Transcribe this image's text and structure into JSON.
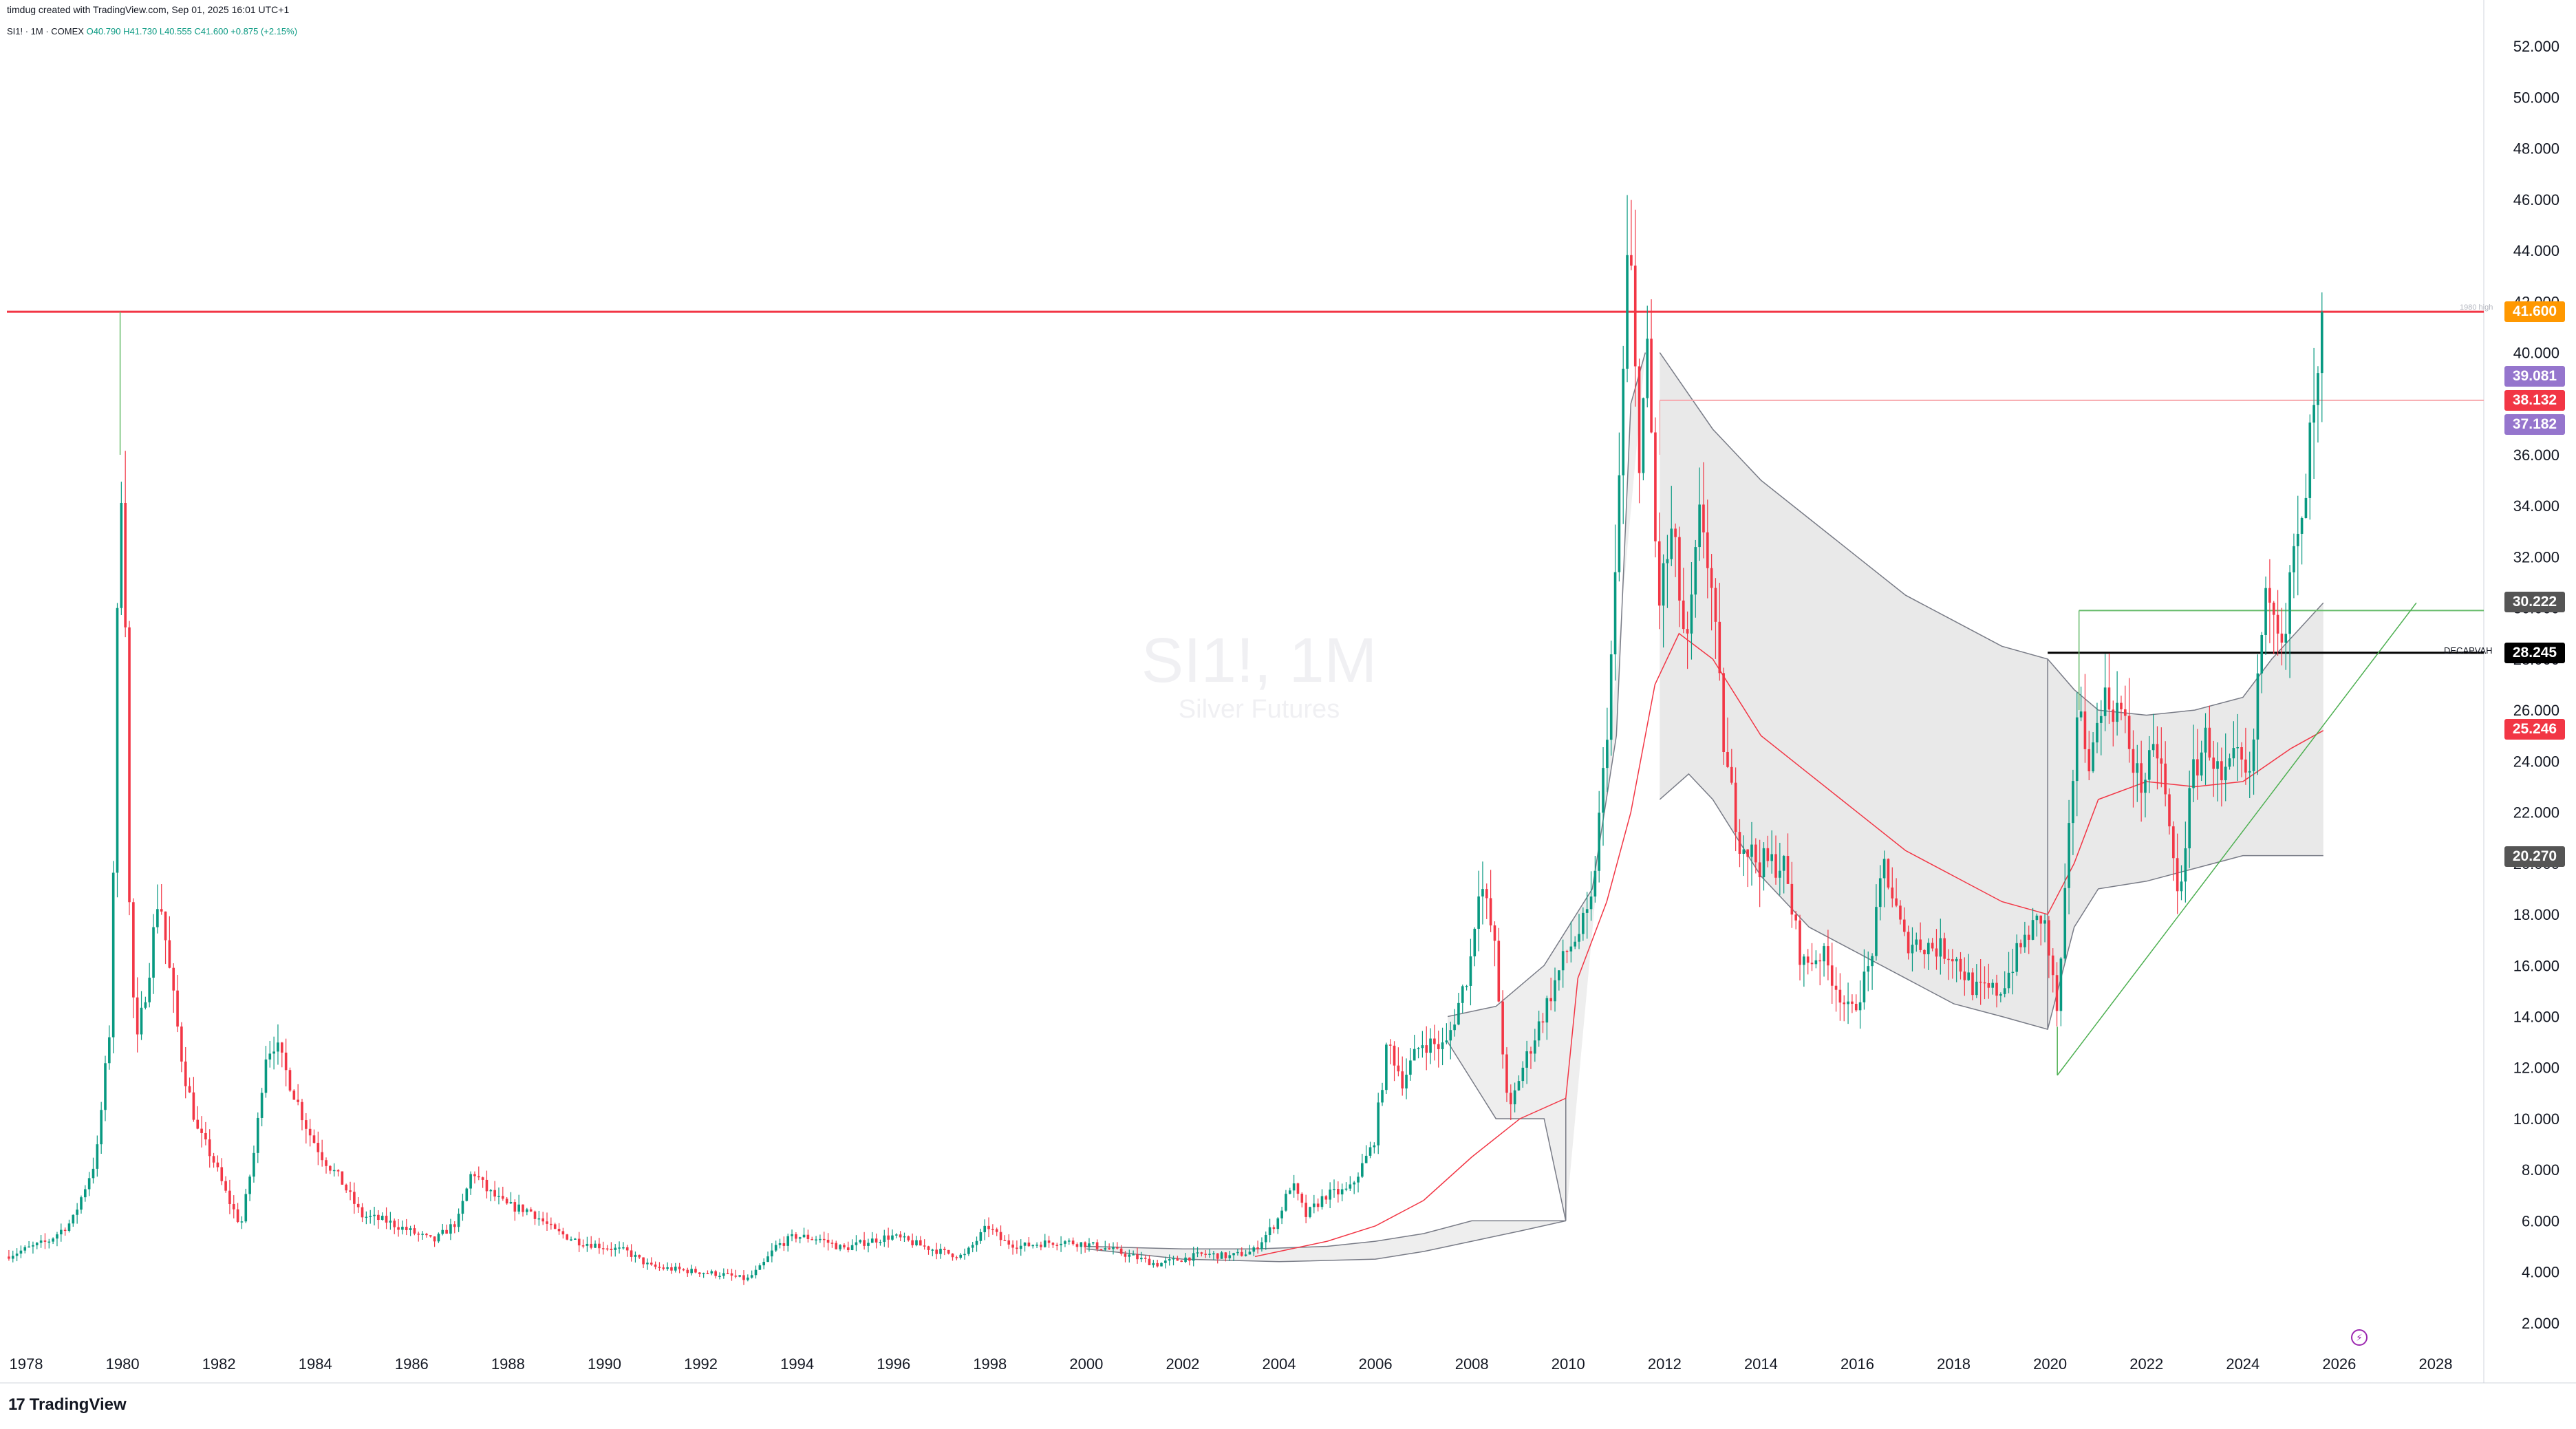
{
  "header": {
    "author_line": "timdug created with TradingView.com, Sep 01, 2025 16:01 UTC+1",
    "symbol": "SI1! · 1M · COMEX",
    "ohlc": "O40.790  H41.730  L40.555  C41.600  +0.875 (+2.15%)"
  },
  "watermark": {
    "symbol": "SI1!, 1M",
    "name": "Silver Futures"
  },
  "logo": {
    "mark": "17",
    "text": "TradingView"
  },
  "price_tags": [
    {
      "value": "41.600",
      "price": 41.6,
      "color": "#ff9800"
    },
    {
      "value": "39.081",
      "price": 39.081,
      "color": "#9575cd"
    },
    {
      "value": "38.132",
      "price": 38.132,
      "color": "#f23645"
    },
    {
      "value": "37.182",
      "price": 37.182,
      "color": "#9575cd"
    },
    {
      "value": "30.222",
      "price": 30.222,
      "color": "#555555"
    },
    {
      "value": "28.245",
      "price": 28.245,
      "color": "#000000"
    },
    {
      "value": "25.246",
      "price": 25.246,
      "color": "#f23645"
    },
    {
      "value": "20.270",
      "price": 20.27,
      "color": "#555555"
    }
  ],
  "labels": {
    "decap": "DECAPVAH",
    "high1980": "1980 high"
  },
  "colors": {
    "up": "#089981",
    "down": "#f23645",
    "band": "#e8e8e8",
    "grid": "#f0f3fa"
  },
  "icons": [
    "bolt-icon",
    "tradingview-logo-icon"
  ],
  "chart_data": {
    "type": "candlestick",
    "title": "SI1!, 1M",
    "subtitle": "Silver Futures",
    "ylim": [
      1.0,
      53.0
    ],
    "xlim": [
      1977.6,
      2029.0
    ],
    "yticks": [
      "2.000",
      "4.000",
      "6.000",
      "8.000",
      "10.000",
      "12.000",
      "14.000",
      "16.000",
      "18.000",
      "20.000",
      "22.000",
      "24.000",
      "26.000",
      "28.000",
      "30.000",
      "32.000",
      "34.000",
      "36.000",
      "38.000",
      "40.000",
      "42.000",
      "44.000",
      "46.000",
      "48.000",
      "50.000",
      "52.000"
    ],
    "xticks": [
      "1978",
      "1980",
      "1982",
      "1984",
      "1986",
      "1988",
      "1990",
      "1992",
      "1994",
      "1996",
      "1998",
      "2000",
      "2002",
      "2004",
      "2006",
      "2008",
      "2010",
      "2012",
      "2014",
      "2016",
      "2018",
      "2020",
      "2022",
      "2024",
      "2026",
      "2028"
    ],
    "path_points": [
      [
        1977.6,
        4.6
      ],
      [
        1978.5,
        5.2
      ],
      [
        1979.0,
        6.0
      ],
      [
        1979.5,
        8.5
      ],
      [
        1979.8,
        14
      ],
      [
        1979.92,
        28
      ],
      [
        1980.0,
        36
      ],
      [
        1980.1,
        30
      ],
      [
        1980.2,
        16
      ],
      [
        1980.35,
        13
      ],
      [
        1980.6,
        16
      ],
      [
        1980.8,
        19
      ],
      [
        1981.0,
        16
      ],
      [
        1981.3,
        12
      ],
      [
        1981.6,
        9.5
      ],
      [
        1981.9,
        8.5
      ],
      [
        1982.2,
        7
      ],
      [
        1982.5,
        5.8
      ],
      [
        1982.8,
        9
      ],
      [
        1983.0,
        12.5
      ],
      [
        1983.2,
        13
      ],
      [
        1983.5,
        11.5
      ],
      [
        1983.9,
        9.5
      ],
      [
        1984.2,
        8.5
      ],
      [
        1984.6,
        7.5
      ],
      [
        1985.0,
        6.2
      ],
      [
        1985.5,
        6.0
      ],
      [
        1986.0,
        5.6
      ],
      [
        1986.5,
        5.2
      ],
      [
        1987.0,
        6.0
      ],
      [
        1987.3,
        8.0
      ],
      [
        1987.6,
        7.2
      ],
      [
        1988.0,
        6.6
      ],
      [
        1988.5,
        6.4
      ],
      [
        1989.0,
        5.6
      ],
      [
        1989.5,
        5.2
      ],
      [
        1990.0,
        5.0
      ],
      [
        1990.5,
        4.8
      ],
      [
        1991.0,
        4.2
      ],
      [
        1991.5,
        4.1
      ],
      [
        1992.0,
        4.0
      ],
      [
        1992.5,
        3.9
      ],
      [
        1993.0,
        3.7
      ],
      [
        1993.3,
        4.2
      ],
      [
        1993.6,
        5.0
      ],
      [
        1994.0,
        5.4
      ],
      [
        1994.5,
        5.3
      ],
      [
        1995.0,
        4.9
      ],
      [
        1995.5,
        5.2
      ],
      [
        1996.0,
        5.4
      ],
      [
        1996.5,
        5.1
      ],
      [
        1997.0,
        4.8
      ],
      [
        1997.5,
        4.6
      ],
      [
        1998.0,
        5.8
      ],
      [
        1998.3,
        5.2
      ],
      [
        1998.7,
        5.0
      ],
      [
        1999.0,
        5.1
      ],
      [
        1999.5,
        5.2
      ],
      [
        2000.0,
        5.1
      ],
      [
        2000.5,
        4.9
      ],
      [
        2001.0,
        4.6
      ],
      [
        2001.5,
        4.3
      ],
      [
        2002.0,
        4.5
      ],
      [
        2002.5,
        4.7
      ],
      [
        2003.0,
        4.6
      ],
      [
        2003.5,
        4.8
      ],
      [
        2004.0,
        6.0
      ],
      [
        2004.3,
        7.5
      ],
      [
        2004.6,
        6.2
      ],
      [
        2005.0,
        7.0
      ],
      [
        2005.5,
        7.2
      ],
      [
        2006.0,
        9.0
      ],
      [
        2006.3,
        13.0
      ],
      [
        2006.6,
        11.5
      ],
      [
        2007.0,
        13.0
      ],
      [
        2007.5,
        12.8
      ],
      [
        2008.0,
        16.0
      ],
      [
        2008.2,
        19.5
      ],
      [
        2008.5,
        17.0
      ],
      [
        2008.8,
        10.0
      ],
      [
        2009.0,
        11.5
      ],
      [
        2009.5,
        14.0
      ],
      [
        2010.0,
        16.5
      ],
      [
        2010.5,
        18.0
      ],
      [
        2010.8,
        24.0
      ],
      [
        2011.0,
        30.0
      ],
      [
        2011.3,
        45.0
      ],
      [
        2011.5,
        36.0
      ],
      [
        2011.7,
        40.0
      ],
      [
        2011.9,
        30.0
      ],
      [
        2012.2,
        33.0
      ],
      [
        2012.5,
        28.0
      ],
      [
        2012.8,
        34.0
      ],
      [
        2013.0,
        31.0
      ],
      [
        2013.3,
        24.0
      ],
      [
        2013.6,
        21.0
      ],
      [
        2014.0,
        20.0
      ],
      [
        2014.5,
        20.0
      ],
      [
        2014.9,
        16.0
      ],
      [
        2015.3,
        16.5
      ],
      [
        2015.9,
        14.0
      ],
      [
        2016.3,
        16.0
      ],
      [
        2016.6,
        20.0
      ],
      [
        2017.0,
        17.0
      ],
      [
        2017.5,
        16.8
      ],
      [
        2018.0,
        16.5
      ],
      [
        2018.5,
        15.0
      ],
      [
        2019.0,
        15.0
      ],
      [
        2019.5,
        17.0
      ],
      [
        2019.9,
        18.0
      ],
      [
        2020.2,
        14.0
      ],
      [
        2020.6,
        26.0
      ],
      [
        2020.9,
        24.0
      ],
      [
        2021.1,
        26.5
      ],
      [
        2021.5,
        26.0
      ],
      [
        2021.9,
        23.0
      ],
      [
        2022.3,
        24.5
      ],
      [
        2022.7,
        18.5
      ],
      [
        2023.0,
        23.5
      ],
      [
        2023.3,
        25.0
      ],
      [
        2023.6,
        23.0
      ],
      [
        2023.9,
        24.0
      ],
      [
        2024.2,
        23.0
      ],
      [
        2024.4,
        28.5
      ],
      [
        2024.6,
        31.0
      ],
      [
        2024.9,
        29.0
      ],
      [
        2025.1,
        32.0
      ],
      [
        2025.3,
        33.0
      ],
      [
        2025.4,
        36.0
      ],
      [
        2025.6,
        38.5
      ],
      [
        2025.67,
        41.6
      ]
    ],
    "band_upper": [
      [
        2011.9,
        40
      ],
      [
        2013,
        37
      ],
      [
        2014,
        35
      ],
      [
        2015,
        33.5
      ],
      [
        2016,
        32
      ],
      [
        2017,
        30.5
      ],
      [
        2018,
        29.5
      ],
      [
        2019,
        28.5
      ],
      [
        2019.95,
        28.0
      ],
      [
        2020.5,
        26.8
      ],
      [
        2021,
        26.0
      ],
      [
        2022,
        25.8
      ],
      [
        2023,
        26
      ],
      [
        2024,
        26.5
      ],
      [
        2024.6,
        28.0
      ],
      [
        2025.67,
        30.2
      ]
    ],
    "band_lower": [
      [
        2011.9,
        22.5
      ],
      [
        2012.5,
        23.5
      ],
      [
        2013,
        22.5
      ],
      [
        2014,
        19.5
      ],
      [
        2015,
        17.5
      ],
      [
        2016,
        16.5
      ],
      [
        2017,
        15.5
      ],
      [
        2018,
        14.5
      ],
      [
        2019,
        14.0
      ],
      [
        2019.95,
        13.5
      ],
      [
        2020.5,
        17.5
      ],
      [
        2021,
        19.0
      ],
      [
        2022,
        19.3
      ],
      [
        2023,
        19.8
      ],
      [
        2024,
        20.3
      ],
      [
        2025.67,
        20.3
      ]
    ],
    "band2_upper": [
      [
        2000,
        5.0
      ],
      [
        2002,
        4.9
      ],
      [
        2003.5,
        4.9
      ],
      [
        2005,
        5.0
      ],
      [
        2006,
        5.2
      ],
      [
        2007,
        5.5
      ],
      [
        2008,
        6.0
      ],
      [
        2009,
        6.0
      ],
      [
        2009.95,
        6.0
      ]
    ],
    "band2_lower": [
      [
        2000,
        4.9
      ],
      [
        2002,
        4.5
      ],
      [
        2004,
        4.4
      ],
      [
        2006,
        4.5
      ],
      [
        2007,
        4.8
      ],
      [
        2008,
        5.2
      ],
      [
        2009,
        5.6
      ],
      [
        2009.95,
        6.0
      ]
    ],
    "band3_upper": [
      [
        2007.5,
        14
      ],
      [
        2008.5,
        14.4
      ],
      [
        2009.5,
        16
      ],
      [
        2010.5,
        19
      ],
      [
        2011,
        25
      ],
      [
        2011.3,
        38
      ],
      [
        2011.6,
        40
      ]
    ],
    "band3_lower": [
      [
        2007.5,
        13
      ],
      [
        2008.5,
        10
      ],
      [
        2009.5,
        10
      ],
      [
        2009.95,
        6.0
      ]
    ],
    "vwap_red": [
      [
        2003.5,
        4.6
      ],
      [
        2005,
        5.2
      ],
      [
        2006,
        5.8
      ],
      [
        2007,
        6.8
      ],
      [
        2008,
        8.5
      ],
      [
        2009,
        10.0
      ],
      [
        2009.95,
        10.8
      ],
      [
        2010.2,
        15.5
      ],
      [
        2010.8,
        18.5
      ],
      [
        2011.3,
        22
      ],
      [
        2011.8,
        27
      ],
      [
        2012.3,
        29
      ],
      [
        2013,
        28
      ],
      [
        2014,
        25
      ],
      [
        2015,
        23.5
      ],
      [
        2016,
        22.0
      ],
      [
        2017,
        20.5
      ],
      [
        2018,
        19.5
      ],
      [
        2019,
        18.5
      ],
      [
        2019.95,
        18.0
      ],
      [
        2020.5,
        20
      ],
      [
        2021,
        22.5
      ],
      [
        2022,
        23.2
      ],
      [
        2023,
        23.0
      ],
      [
        2024,
        23.2
      ],
      [
        2025,
        24.5
      ],
      [
        2025.67,
        25.2
      ]
    ],
    "h_lines": [
      {
        "price": 41.6,
        "x_from": 1977.6,
        "x_to": 2029.0,
        "color": "#f23645",
        "width": 3
      },
      {
        "price": 38.132,
        "x_from": 2011.9,
        "x_to": 2029.0,
        "color": "#f7a9ae",
        "width": 2
      },
      {
        "price": 28.245,
        "x_from": 2019.95,
        "x_to": 2029.0,
        "color": "#000000",
        "width": 3
      },
      {
        "price": 29.9,
        "x_from": 2020.6,
        "x_to": 2029.0,
        "color": "#66bb6a",
        "width": 2
      }
    ],
    "trendline": [
      [
        2020.15,
        11.7
      ],
      [
        2027.6,
        30.2
      ]
    ],
    "v_line_1980": 1979.95
  }
}
